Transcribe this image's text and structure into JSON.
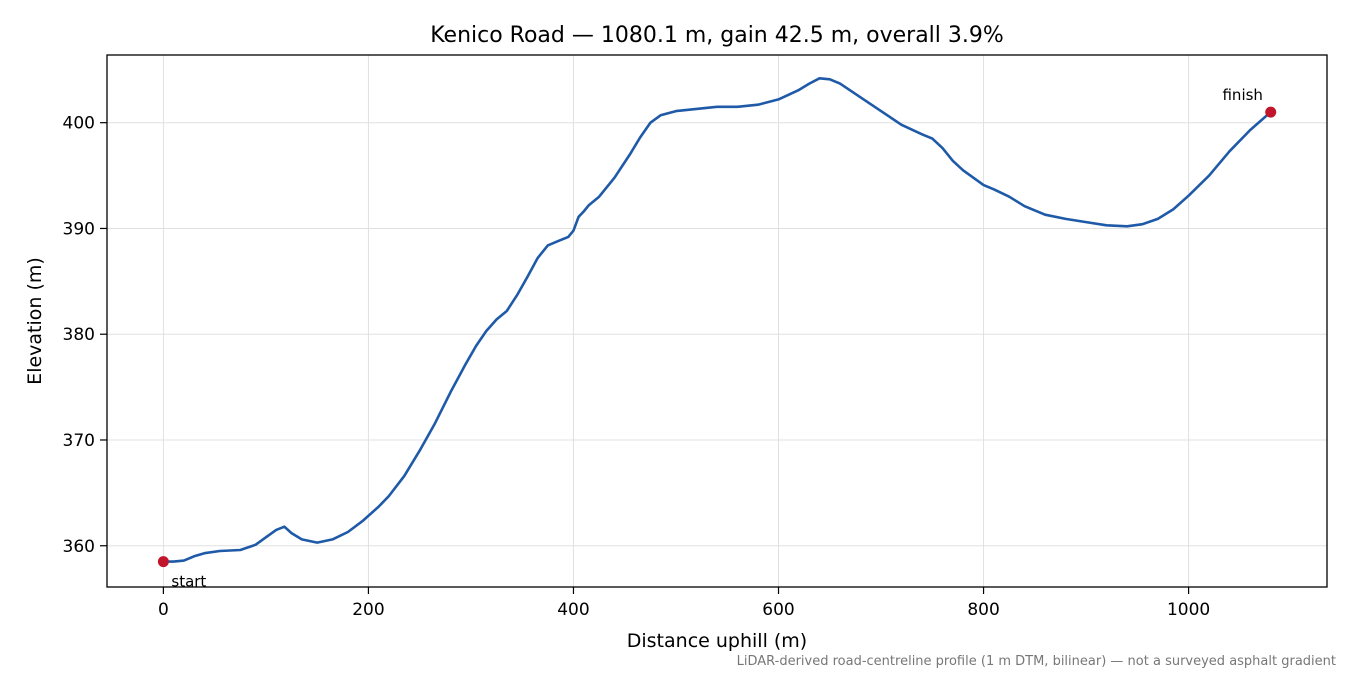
{
  "chart_data": {
    "type": "line",
    "title": "Kenico Road — 1080.1 m, gain 42.5 m, overall 3.9%",
    "xlabel": "Distance uphill (m)",
    "ylabel": "Elevation (m)",
    "xlim": [
      -55,
      1135
    ],
    "ylim": [
      356.1,
      406.4
    ],
    "x_ticks": [
      0,
      200,
      400,
      600,
      800,
      1000
    ],
    "y_ticks": [
      360,
      370,
      380,
      390,
      400
    ],
    "grid": true,
    "footnote": "LiDAR-derived road-centreline profile (1 m DTM, bilinear) — not a surveyed asphalt gradient",
    "colors": {
      "line": "#1f5aa8",
      "marker": "#c0152a",
      "grid": "#e0e0e0",
      "footnote": "#777777"
    },
    "series": [
      {
        "x": [
          0,
          10,
          20,
          30,
          40,
          55,
          75,
          90,
          100,
          110,
          118,
          125,
          135,
          150,
          165,
          180,
          195,
          210,
          220,
          235,
          250,
          265,
          280,
          295,
          305,
          315,
          325,
          335,
          345,
          355,
          365,
          375,
          385,
          395,
          400,
          405,
          410,
          415,
          425,
          440,
          455,
          465,
          475,
          485,
          500,
          520,
          540,
          560,
          580,
          600,
          620,
          630,
          640,
          650,
          660,
          680,
          700,
          720,
          740,
          750,
          760,
          770,
          780,
          800,
          810,
          825,
          840,
          860,
          880,
          900,
          920,
          940,
          955,
          970,
          985,
          1000,
          1020,
          1040,
          1060,
          1080
        ],
        "y": [
          358.5,
          358.5,
          358.6,
          359.0,
          359.3,
          359.5,
          359.6,
          360.1,
          360.8,
          361.5,
          361.8,
          361.2,
          360.6,
          360.3,
          360.6,
          361.3,
          362.4,
          363.7,
          364.7,
          366.6,
          369.0,
          371.6,
          374.5,
          377.2,
          378.9,
          380.3,
          381.4,
          382.2,
          383.7,
          385.4,
          387.2,
          388.4,
          388.8,
          389.2,
          389.8,
          391.1,
          391.6,
          392.2,
          393.0,
          394.8,
          397.0,
          398.6,
          400.0,
          400.7,
          401.1,
          401.3,
          401.5,
          401.5,
          401.7,
          402.2,
          403.1,
          403.7,
          404.2,
          404.1,
          403.7,
          402.4,
          401.1,
          399.8,
          398.9,
          398.5,
          397.6,
          396.4,
          395.5,
          394.1,
          393.7,
          393.0,
          392.1,
          391.3,
          390.9,
          390.6,
          390.3,
          390.2,
          390.4,
          390.9,
          391.8,
          393.1,
          395.0,
          397.3,
          399.3,
          401.0
        ]
      }
    ],
    "annotations": [
      {
        "label": "start",
        "x": 0,
        "y": 358.5
      },
      {
        "label": "finish",
        "x": 1080.1,
        "y": 401.0
      }
    ]
  }
}
